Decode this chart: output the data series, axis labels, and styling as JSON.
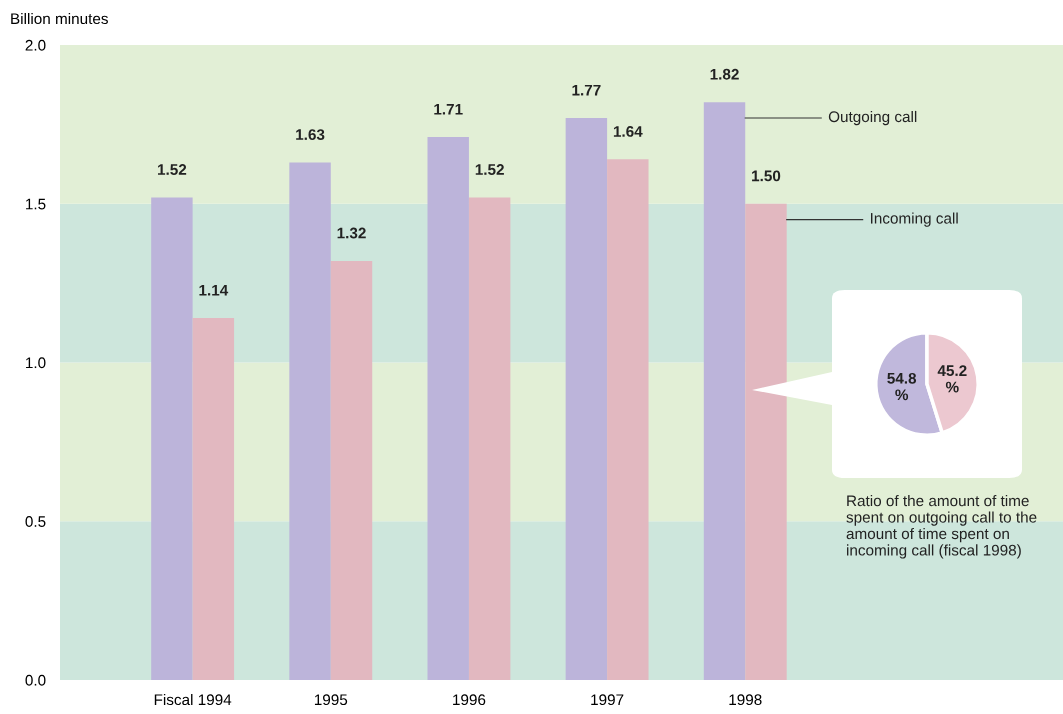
{
  "chart_data": [
    {
      "type": "bar",
      "ylabel": "Billion minutes",
      "categories": [
        "Fiscal 1994",
        "1995",
        "1996",
        "1997",
        "1998"
      ],
      "series": [
        {
          "name": "Outgoing call",
          "color": "#bcb4da",
          "values": [
            1.52,
            1.63,
            1.71,
            1.77,
            1.82
          ],
          "value_labels": [
            "1.52",
            "1.63",
            "1.71",
            "1.77",
            "1.82"
          ]
        },
        {
          "name": "Incoming call",
          "color": "#e2b8c0",
          "values": [
            1.14,
            1.32,
            1.52,
            1.64,
            1.5
          ],
          "value_labels": [
            "1.14",
            "1.32",
            "1.52",
            "1.64",
            "1.50"
          ]
        }
      ],
      "ylim": [
        0,
        2.0
      ],
      "yticks": [
        {
          "value": 0,
          "label": "0.0"
        },
        {
          "value": 0.5,
          "label": "0.5"
        },
        {
          "value": 1.0,
          "label": "1.0"
        },
        {
          "value": 1.5,
          "label": "1.5"
        },
        {
          "value": 2.0,
          "label": "2.0"
        }
      ],
      "bands": [
        {
          "axis": "y",
          "from": 0,
          "to": 0.5,
          "color": "#cde6dc"
        },
        {
          "axis": "y",
          "from": 0.5,
          "to": 1.0,
          "color": "#e2efd6"
        },
        {
          "axis": "y",
          "from": 1.0,
          "to": 1.5,
          "color": "#cde6dc"
        },
        {
          "axis": "y",
          "from": 1.5,
          "to": 2.0,
          "color": "#e2efd6"
        }
      ],
      "legend": false,
      "grid": false
    },
    {
      "type": "pie",
      "categories": [
        null,
        null
      ],
      "values": [
        54.8,
        45.2
      ],
      "colors": [
        "#c0b8dc",
        "#ecc8d0"
      ],
      "value_labels": [
        "54.8\n%",
        "45.2\n%"
      ],
      "annotations": [
        "Ratio of the amount of time spent on outgoing call to the amount of time spent on incoming call (fiscal 1998)"
      ]
    }
  ]
}
